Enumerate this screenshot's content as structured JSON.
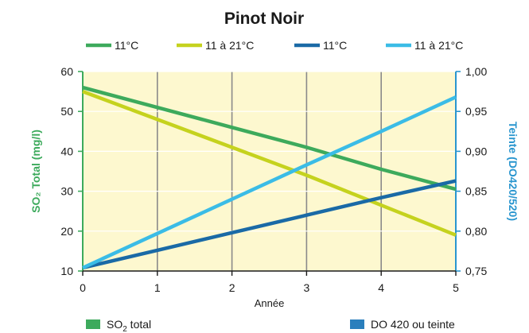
{
  "chart_data": {
    "type": "line",
    "title": "Pinot Noir",
    "xlabel": "Année",
    "ylabel_left": "SO₂ Total (mg/l)",
    "ylabel_right": "Teinte (DO420/520)",
    "x": [
      0,
      1,
      2,
      3,
      4,
      5
    ],
    "x_tick_labels": [
      "0",
      "1",
      "2",
      "3",
      "4",
      "5"
    ],
    "ylim_left": [
      10,
      60
    ],
    "yticks_left": [
      "10",
      "20",
      "30",
      "40",
      "50",
      "60"
    ],
    "ylim_right": [
      0.75,
      1.0
    ],
    "yticks_right": [
      "0,75",
      "0,80",
      "0,85",
      "0,90",
      "0,95",
      "1,00"
    ],
    "grid": "vertical",
    "legend_position": "top",
    "background_color": "#fdf8cf",
    "series": [
      {
        "name": "11°C",
        "axis": "left",
        "color": "#3daa5c",
        "values": [
          56,
          51,
          46,
          41,
          35.5,
          30.5
        ]
      },
      {
        "name": "11 à 21°C",
        "axis": "left",
        "color": "#c5d21e",
        "values": [
          55,
          48,
          41,
          34,
          26.5,
          19
        ]
      },
      {
        "name": "11°C",
        "axis": "right",
        "color": "#1a6aa6",
        "values": [
          0.754,
          0.776,
          0.798,
          0.82,
          0.842,
          0.863
        ]
      },
      {
        "name": "11 à 21°C",
        "axis": "right",
        "color": "#3bbce6",
        "values": [
          0.754,
          0.797,
          0.84,
          0.883,
          0.925,
          0.968
        ]
      }
    ],
    "bottom_legend": [
      {
        "label_main": "SO",
        "label_sub": "2",
        "label_rest": " total",
        "color": "#3daa5c"
      },
      {
        "label_main": "DO 420 ou teinte",
        "label_sub": "",
        "label_rest": "",
        "color": "#2a7fbd"
      }
    ]
  }
}
